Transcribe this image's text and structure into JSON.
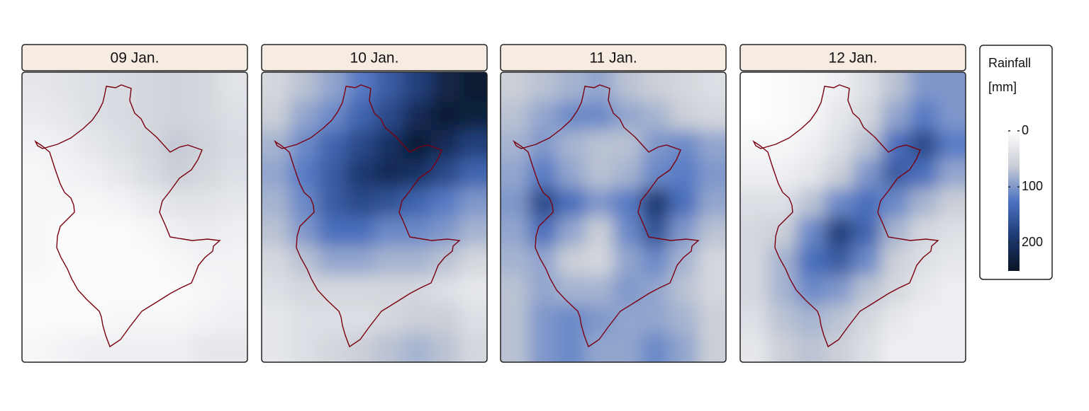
{
  "chart_data": {
    "type": "heatmap",
    "panels": [
      {
        "title": "09 Jan.",
        "values": [
          [
            30,
            35,
            40,
            45,
            50,
            55,
            50,
            35
          ],
          [
            25,
            30,
            40,
            45,
            50,
            55,
            50,
            40
          ],
          [
            15,
            20,
            30,
            40,
            50,
            65,
            55,
            45
          ],
          [
            10,
            15,
            20,
            30,
            45,
            60,
            50,
            40
          ],
          [
            10,
            10,
            10,
            15,
            25,
            35,
            35,
            30
          ],
          [
            10,
            5,
            5,
            5,
            10,
            20,
            25,
            20
          ],
          [
            10,
            5,
            5,
            5,
            5,
            10,
            15,
            15
          ],
          [
            5,
            5,
            5,
            5,
            5,
            5,
            10,
            15
          ],
          [
            5,
            5,
            5,
            10,
            10,
            10,
            15,
            20
          ],
          [
            10,
            15,
            20,
            20,
            20,
            20,
            30,
            30
          ]
        ]
      },
      {
        "title": "10 Jan.",
        "values": [
          [
            50,
            70,
            90,
            120,
            150,
            180,
            220,
            240
          ],
          [
            60,
            90,
            110,
            140,
            170,
            210,
            240,
            230
          ],
          [
            80,
            110,
            140,
            170,
            200,
            240,
            210,
            180
          ],
          [
            90,
            120,
            150,
            190,
            210,
            200,
            170,
            140
          ],
          [
            80,
            110,
            150,
            170,
            160,
            140,
            120,
            100
          ],
          [
            70,
            100,
            130,
            130,
            110,
            110,
            100,
            80
          ],
          [
            50,
            70,
            90,
            90,
            80,
            80,
            70,
            50
          ],
          [
            40,
            50,
            50,
            50,
            50,
            50,
            40,
            30
          ],
          [
            30,
            40,
            40,
            40,
            50,
            60,
            60,
            40
          ],
          [
            30,
            40,
            50,
            60,
            70,
            80,
            70,
            50
          ]
        ]
      },
      {
        "title": "11 Jan.",
        "values": [
          [
            60,
            70,
            80,
            90,
            70,
            60,
            50,
            40
          ],
          [
            70,
            90,
            110,
            110,
            90,
            80,
            60,
            50
          ],
          [
            80,
            100,
            80,
            70,
            70,
            100,
            110,
            90
          ],
          [
            90,
            120,
            90,
            70,
            80,
            110,
            120,
            100
          ],
          [
            100,
            170,
            130,
            100,
            120,
            190,
            130,
            90
          ],
          [
            90,
            130,
            90,
            60,
            110,
            160,
            100,
            70
          ],
          [
            80,
            90,
            60,
            50,
            90,
            110,
            80,
            50
          ],
          [
            70,
            90,
            80,
            80,
            100,
            90,
            70,
            50
          ],
          [
            70,
            100,
            110,
            100,
            90,
            90,
            80,
            60
          ],
          [
            70,
            100,
            110,
            90,
            90,
            110,
            90,
            60
          ]
        ]
      },
      {
        "title": "12 Jan.",
        "values": [
          [
            0,
            5,
            10,
            20,
            40,
            70,
            100,
            100
          ],
          [
            0,
            5,
            10,
            30,
            50,
            90,
            120,
            100
          ],
          [
            10,
            10,
            20,
            40,
            70,
            130,
            170,
            120
          ],
          [
            20,
            20,
            30,
            60,
            100,
            150,
            130,
            90
          ],
          [
            40,
            40,
            70,
            110,
            130,
            110,
            80,
            60
          ],
          [
            50,
            60,
            110,
            180,
            140,
            80,
            50,
            40
          ],
          [
            50,
            80,
            130,
            150,
            110,
            60,
            40,
            30
          ],
          [
            50,
            80,
            110,
            100,
            70,
            50,
            30,
            20
          ],
          [
            40,
            70,
            80,
            70,
            50,
            30,
            20,
            20
          ],
          [
            30,
            60,
            70,
            60,
            40,
            20,
            20,
            20
          ]
        ]
      }
    ],
    "legend_title": [
      "Rainfall",
      "[mm]"
    ],
    "colors": [
      "#ffffff",
      "#c9cdd5",
      "#4d73c2",
      "#1d3a73",
      "#0a1424"
    ],
    "lim": [
      0,
      250
    ],
    "ticks": [
      0,
      100,
      200
    ]
  }
}
